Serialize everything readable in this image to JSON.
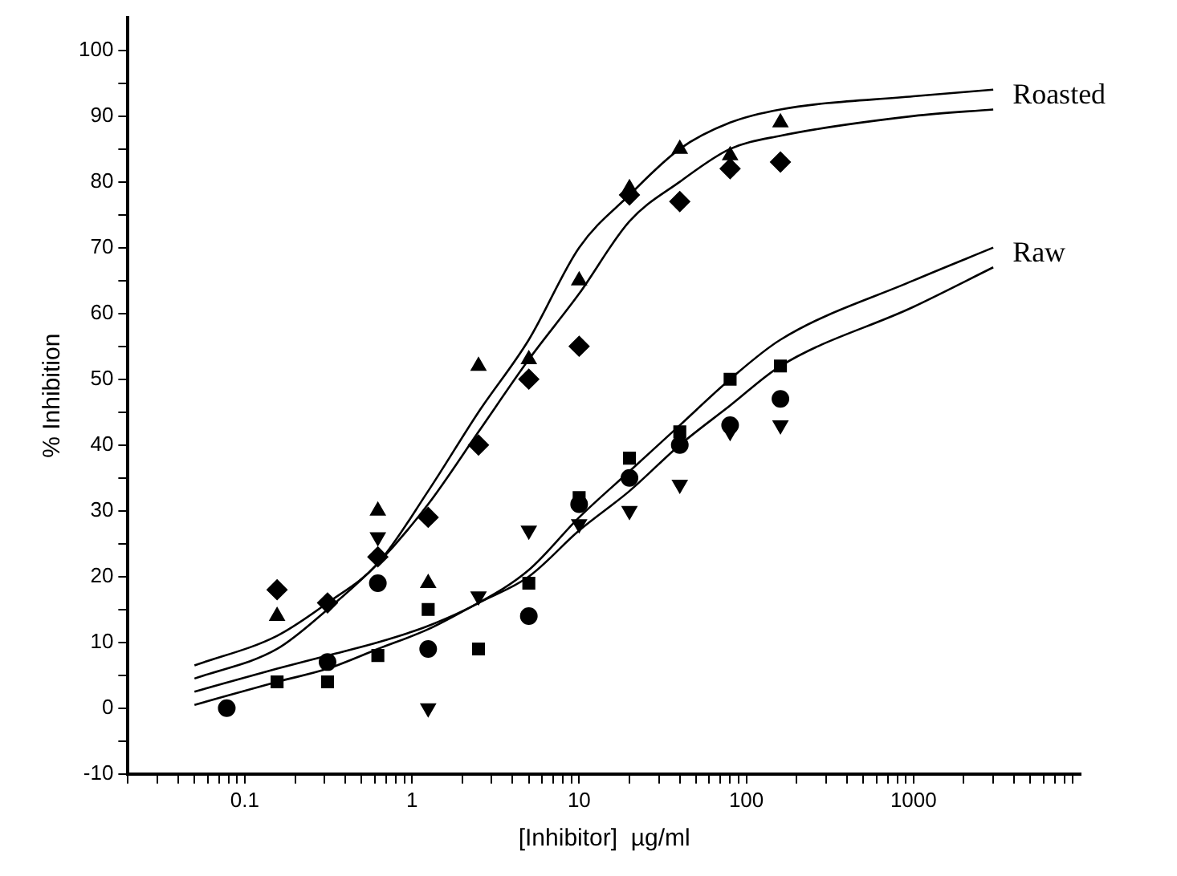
{
  "chart_data": {
    "type": "scatter",
    "xlabel": "[Inhibitor]  µg/ml",
    "ylabel": "% Inhibition",
    "log": "x",
    "grid": false,
    "legend": false,
    "xlim": [
      0.02,
      10000
    ],
    "ylim": [
      -10,
      105
    ],
    "xticks": [
      {
        "value": 0.02,
        "label": null
      },
      {
        "value": 0.03,
        "label": null
      },
      {
        "value": 0.04,
        "label": null
      },
      {
        "value": 0.05,
        "label": null
      },
      {
        "value": 0.06,
        "label": null
      },
      {
        "value": 0.07,
        "label": null
      },
      {
        "value": 0.08,
        "label": null
      },
      {
        "value": 0.09,
        "label": null
      },
      0.1,
      {
        "value": 0.2,
        "label": null
      },
      {
        "value": 0.3,
        "label": null
      },
      {
        "value": 0.4,
        "label": null
      },
      {
        "value": 0.5,
        "label": null
      },
      {
        "value": 0.6,
        "label": null
      },
      {
        "value": 0.7,
        "label": null
      },
      {
        "value": 0.8,
        "label": null
      },
      {
        "value": 0.9,
        "label": null
      },
      1,
      {
        "value": 2,
        "label": null
      },
      {
        "value": 3,
        "label": null
      },
      {
        "value": 4,
        "label": null
      },
      {
        "value": 5,
        "label": null
      },
      {
        "value": 6,
        "label": null
      },
      {
        "value": 7,
        "label": null
      },
      {
        "value": 8,
        "label": null
      },
      {
        "value": 9,
        "label": null
      },
      10,
      {
        "value": 20,
        "label": null
      },
      {
        "value": 30,
        "label": null
      },
      {
        "value": 40,
        "label": null
      },
      {
        "value": 50,
        "label": null
      },
      {
        "value": 60,
        "label": null
      },
      {
        "value": 70,
        "label": null
      },
      {
        "value": 80,
        "label": null
      },
      {
        "value": 90,
        "label": null
      },
      100,
      {
        "value": 200,
        "label": null
      },
      {
        "value": 300,
        "label": null
      },
      {
        "value": 400,
        "label": null
      },
      {
        "value": 500,
        "label": null
      },
      {
        "value": 600,
        "label": null
      },
      {
        "value": 700,
        "label": null
      },
      {
        "value": 800,
        "label": null
      },
      {
        "value": 900,
        "label": null
      },
      1000,
      {
        "value": 2000,
        "label": null
      },
      {
        "value": 3000,
        "label": null
      },
      {
        "value": 4000,
        "label": null
      },
      {
        "value": 5000,
        "label": null
      },
      {
        "value": 6000,
        "label": null
      },
      {
        "value": 7000,
        "label": null
      },
      {
        "value": 8000,
        "label": null
      },
      {
        "value": 9000,
        "label": null
      }
    ],
    "yticks": [
      -10,
      {
        "value": -5,
        "label": null
      },
      0,
      {
        "value": 5,
        "label": null
      },
      10,
      {
        "value": 15,
        "label": null
      },
      20,
      {
        "value": 25,
        "label": null
      },
      30,
      {
        "value": 35,
        "label": null
      },
      40,
      {
        "value": 45,
        "label": null
      },
      50,
      {
        "value": 55,
        "label": null
      },
      60,
      {
        "value": 65,
        "label": null
      },
      70,
      {
        "value": 75,
        "label": null
      },
      80,
      {
        "value": 85,
        "label": null
      },
      90,
      {
        "value": 95,
        "label": null
      },
      100
    ],
    "series": [
      {
        "marker": "triangle",
        "color": "#000000",
        "x": [
          0.156,
          0.625,
          1.25,
          2.5,
          5,
          10,
          20,
          40,
          80,
          160
        ],
        "values": [
          14,
          30,
          19,
          52,
          53,
          65,
          79,
          85,
          84,
          89
        ]
      },
      {
        "marker": "diamond",
        "color": "#000000",
        "x": [
          0.156,
          0.3125,
          0.625,
          1.25,
          2.5,
          5,
          10,
          20,
          40,
          80,
          160
        ],
        "values": [
          18,
          16,
          23,
          29,
          40,
          50,
          55,
          78,
          77,
          82,
          83
        ]
      },
      {
        "marker": "square",
        "color": "#000000",
        "x": [
          0.156,
          0.3125,
          0.625,
          1.25,
          2.5,
          5,
          10,
          20,
          40,
          80,
          160
        ],
        "values": [
          4,
          4,
          8,
          15,
          9,
          19,
          32,
          38,
          42,
          50,
          52
        ]
      },
      {
        "marker": "circle",
        "color": "#000000",
        "x": [
          0.078,
          0.3125,
          0.625,
          1.25,
          5,
          10,
          20,
          40,
          80,
          160
        ],
        "values": [
          0,
          7,
          19,
          9,
          14,
          31,
          35,
          40,
          43,
          47
        ]
      },
      {
        "marker": "triangle-down",
        "color": "#000000",
        "x": [
          0.625,
          1.25,
          2.5,
          5,
          10,
          20,
          40,
          80,
          160
        ],
        "values": [
          26,
          0,
          17,
          27,
          28,
          30,
          34,
          42,
          43
        ]
      },
      {
        "type": "line",
        "name": "Roasted",
        "marker": "none",
        "color": "#000000",
        "x": [
          0.05,
          0.156,
          0.3125,
          0.625,
          1.25,
          2.5,
          5,
          10,
          20,
          40,
          80,
          160,
          1000,
          3000
        ],
        "values": [
          6.5,
          11,
          16,
          22,
          33,
          45,
          56,
          70,
          78,
          85,
          89,
          91,
          93,
          94
        ]
      },
      {
        "type": "line",
        "marker": "none",
        "color": "#000000",
        "x": [
          0.05,
          0.156,
          0.3125,
          0.625,
          1.25,
          2.5,
          5,
          10,
          20,
          40,
          80,
          160,
          1000,
          3000
        ],
        "values": [
          4.5,
          9,
          15,
          22,
          31,
          42,
          53,
          63,
          74,
          80,
          85,
          87,
          90,
          91
        ]
      },
      {
        "type": "line",
        "name": "Raw",
        "marker": "none",
        "color": "#000000",
        "x": [
          0.05,
          0.156,
          0.3125,
          0.625,
          1.25,
          2.5,
          5,
          10,
          20,
          40,
          80,
          160,
          1000,
          3000
        ],
        "values": [
          2.5,
          6,
          8,
          10,
          12.5,
          16,
          21,
          29,
          36,
          43,
          50,
          56,
          65,
          70
        ]
      },
      {
        "type": "line",
        "marker": "none",
        "color": "#000000",
        "x": [
          0.05,
          0.156,
          0.3125,
          0.625,
          1.25,
          2.5,
          5,
          10,
          20,
          40,
          80,
          160,
          1000,
          3000
        ],
        "values": [
          0.5,
          4,
          6,
          9,
          12,
          16,
          20,
          27,
          33,
          40,
          46,
          52,
          61,
          67
        ]
      }
    ]
  }
}
